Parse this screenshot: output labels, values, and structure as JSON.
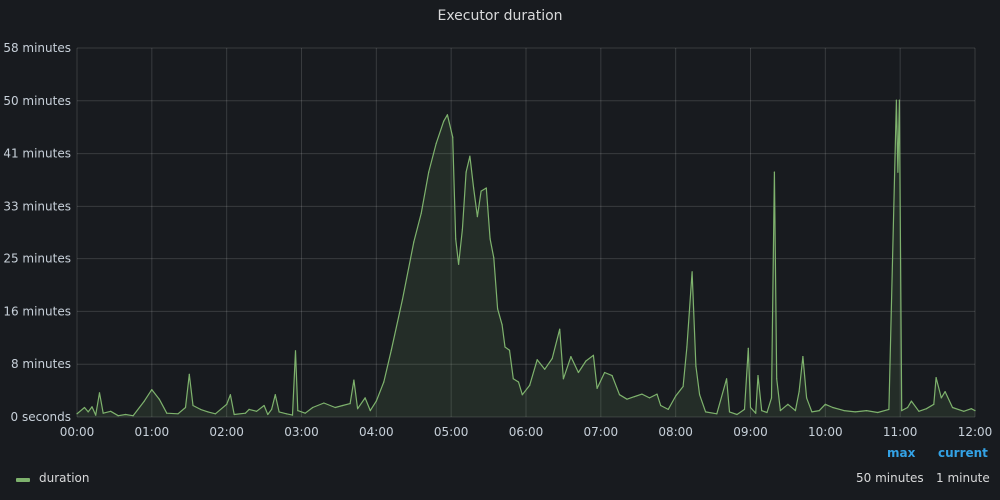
{
  "panel": {
    "title": "Executor duration"
  },
  "legend": {
    "headers": {
      "max": "max",
      "current": "current"
    },
    "series_name": "duration",
    "values": {
      "max": "50 minutes",
      "current": "1 minute"
    }
  },
  "colors": {
    "line": "#7eb26d",
    "fill": "rgba(126,178,109,0.12)",
    "grid": "rgba(255,255,255,0.14)",
    "legend_header": "#33a2e5"
  },
  "chart_data": {
    "type": "area",
    "title": "Executor duration",
    "xlabel": "",
    "ylabel": "",
    "grid": true,
    "legend_placement": "bottom-left",
    "x_unit": "hours",
    "xlim": [
      0,
      12
    ],
    "ylim": [
      0,
      58
    ],
    "x_ticks": [
      "00:00",
      "01:00",
      "02:00",
      "03:00",
      "04:00",
      "05:00",
      "06:00",
      "07:00",
      "08:00",
      "09:00",
      "10:00",
      "11:00",
      "12:00"
    ],
    "y_ticks": [
      {
        "value": 0,
        "label": "0 seconds"
      },
      {
        "value": 8.3,
        "label": "8 minutes"
      },
      {
        "value": 16.6,
        "label": "16 minutes"
      },
      {
        "value": 24.9,
        "label": "25 minutes"
      },
      {
        "value": 33.1,
        "label": "33 minutes"
      },
      {
        "value": 41.4,
        "label": "41 minutes"
      },
      {
        "value": 49.7,
        "label": "50 minutes"
      },
      {
        "value": 58,
        "label": "58 minutes"
      }
    ],
    "series": [
      {
        "name": "duration",
        "points": [
          [
            0,
            0.5
          ],
          [
            0.1,
            1.5
          ],
          [
            0.15,
            0.8
          ],
          [
            0.2,
            1.6
          ],
          [
            0.25,
            0.3
          ],
          [
            0.3,
            3.8
          ],
          [
            0.35,
            0.6
          ],
          [
            0.45,
            0.9
          ],
          [
            0.55,
            0.2
          ],
          [
            0.65,
            0.4
          ],
          [
            0.75,
            0.2
          ],
          [
            0.9,
            2.5
          ],
          [
            1.0,
            4.3
          ],
          [
            1.1,
            2.8
          ],
          [
            1.2,
            0.6
          ],
          [
            1.35,
            0.5
          ],
          [
            1.45,
            1.5
          ],
          [
            1.5,
            6.7
          ],
          [
            1.55,
            1.8
          ],
          [
            1.65,
            1.2
          ],
          [
            1.75,
            0.8
          ],
          [
            1.85,
            0.5
          ],
          [
            2.0,
            2.0
          ],
          [
            2.05,
            3.5
          ],
          [
            2.1,
            0.4
          ],
          [
            2.25,
            0.6
          ],
          [
            2.3,
            1.2
          ],
          [
            2.4,
            0.9
          ],
          [
            2.5,
            1.8
          ],
          [
            2.55,
            0.4
          ],
          [
            2.6,
            1.2
          ],
          [
            2.65,
            3.5
          ],
          [
            2.7,
            0.8
          ],
          [
            2.8,
            0.5
          ],
          [
            2.88,
            0.3
          ],
          [
            2.92,
            10.4
          ],
          [
            2.95,
            1.0
          ],
          [
            3.05,
            0.6
          ],
          [
            3.15,
            1.5
          ],
          [
            3.3,
            2.2
          ],
          [
            3.45,
            1.5
          ],
          [
            3.55,
            1.8
          ],
          [
            3.65,
            2.1
          ],
          [
            3.7,
            5.8
          ],
          [
            3.75,
            1.3
          ],
          [
            3.85,
            3.0
          ],
          [
            3.92,
            1.0
          ],
          [
            4.0,
            2.5
          ],
          [
            4.1,
            5.5
          ],
          [
            4.2,
            10.5
          ],
          [
            4.35,
            18.5
          ],
          [
            4.5,
            27.5
          ],
          [
            4.6,
            32.0
          ],
          [
            4.7,
            38.5
          ],
          [
            4.8,
            43.0
          ],
          [
            4.9,
            46.5
          ],
          [
            4.95,
            47.5
          ],
          [
            5.02,
            44.0
          ],
          [
            5.06,
            28.0
          ],
          [
            5.1,
            24.0
          ],
          [
            5.15,
            29.5
          ],
          [
            5.2,
            38.5
          ],
          [
            5.25,
            41.0
          ],
          [
            5.3,
            36.0
          ],
          [
            5.35,
            31.5
          ],
          [
            5.4,
            35.5
          ],
          [
            5.47,
            36.0
          ],
          [
            5.52,
            28.0
          ],
          [
            5.57,
            25.0
          ],
          [
            5.62,
            17.0
          ],
          [
            5.68,
            14.5
          ],
          [
            5.72,
            11.0
          ],
          [
            5.78,
            10.5
          ],
          [
            5.83,
            6.0
          ],
          [
            5.9,
            5.5
          ],
          [
            5.95,
            3.5
          ],
          [
            6.05,
            5.0
          ],
          [
            6.15,
            9.0
          ],
          [
            6.25,
            7.5
          ],
          [
            6.35,
            9.2
          ],
          [
            6.45,
            13.8
          ],
          [
            6.5,
            6.0
          ],
          [
            6.6,
            9.5
          ],
          [
            6.7,
            7.0
          ],
          [
            6.8,
            8.8
          ],
          [
            6.9,
            9.7
          ],
          [
            6.95,
            4.5
          ],
          [
            7.05,
            7.0
          ],
          [
            7.15,
            6.5
          ],
          [
            7.25,
            3.5
          ],
          [
            7.35,
            2.8
          ],
          [
            7.45,
            3.2
          ],
          [
            7.55,
            3.6
          ],
          [
            7.65,
            3.0
          ],
          [
            7.75,
            3.6
          ],
          [
            7.8,
            1.8
          ],
          [
            7.9,
            1.2
          ],
          [
            8.0,
            3.3
          ],
          [
            8.1,
            4.8
          ],
          [
            8.15,
            11.0
          ],
          [
            8.22,
            22.8
          ],
          [
            8.27,
            8.0
          ],
          [
            8.32,
            3.5
          ],
          [
            8.4,
            0.8
          ],
          [
            8.55,
            0.5
          ],
          [
            8.68,
            6.0
          ],
          [
            8.72,
            0.8
          ],
          [
            8.82,
            0.4
          ],
          [
            8.92,
            1.2
          ],
          [
            8.97,
            10.8
          ],
          [
            9.0,
            1.5
          ],
          [
            9.07,
            0.6
          ],
          [
            9.1,
            6.5
          ],
          [
            9.15,
            1.0
          ],
          [
            9.22,
            0.7
          ],
          [
            9.28,
            3.0
          ],
          [
            9.32,
            38.5
          ],
          [
            9.35,
            6.0
          ],
          [
            9.4,
            1.0
          ],
          [
            9.5,
            2.0
          ],
          [
            9.6,
            1.0
          ],
          [
            9.65,
            4.0
          ],
          [
            9.7,
            9.5
          ],
          [
            9.75,
            3.0
          ],
          [
            9.82,
            0.8
          ],
          [
            9.92,
            1.0
          ],
          [
            10.0,
            2.0
          ],
          [
            10.1,
            1.5
          ],
          [
            10.25,
            1.0
          ],
          [
            10.4,
            0.8
          ],
          [
            10.55,
            1.0
          ],
          [
            10.7,
            0.7
          ],
          [
            10.85,
            1.2
          ],
          [
            10.95,
            49.8
          ],
          [
            10.97,
            38.5
          ],
          [
            10.99,
            49.8
          ],
          [
            11.02,
            1.0
          ],
          [
            11.1,
            1.5
          ],
          [
            11.15,
            2.5
          ],
          [
            11.25,
            0.9
          ],
          [
            11.35,
            1.3
          ],
          [
            11.45,
            2.0
          ],
          [
            11.48,
            6.2
          ],
          [
            11.55,
            3.0
          ],
          [
            11.6,
            4.0
          ],
          [
            11.7,
            1.5
          ],
          [
            11.85,
            0.9
          ],
          [
            11.95,
            1.3
          ],
          [
            12.0,
            1.0
          ]
        ]
      }
    ]
  }
}
